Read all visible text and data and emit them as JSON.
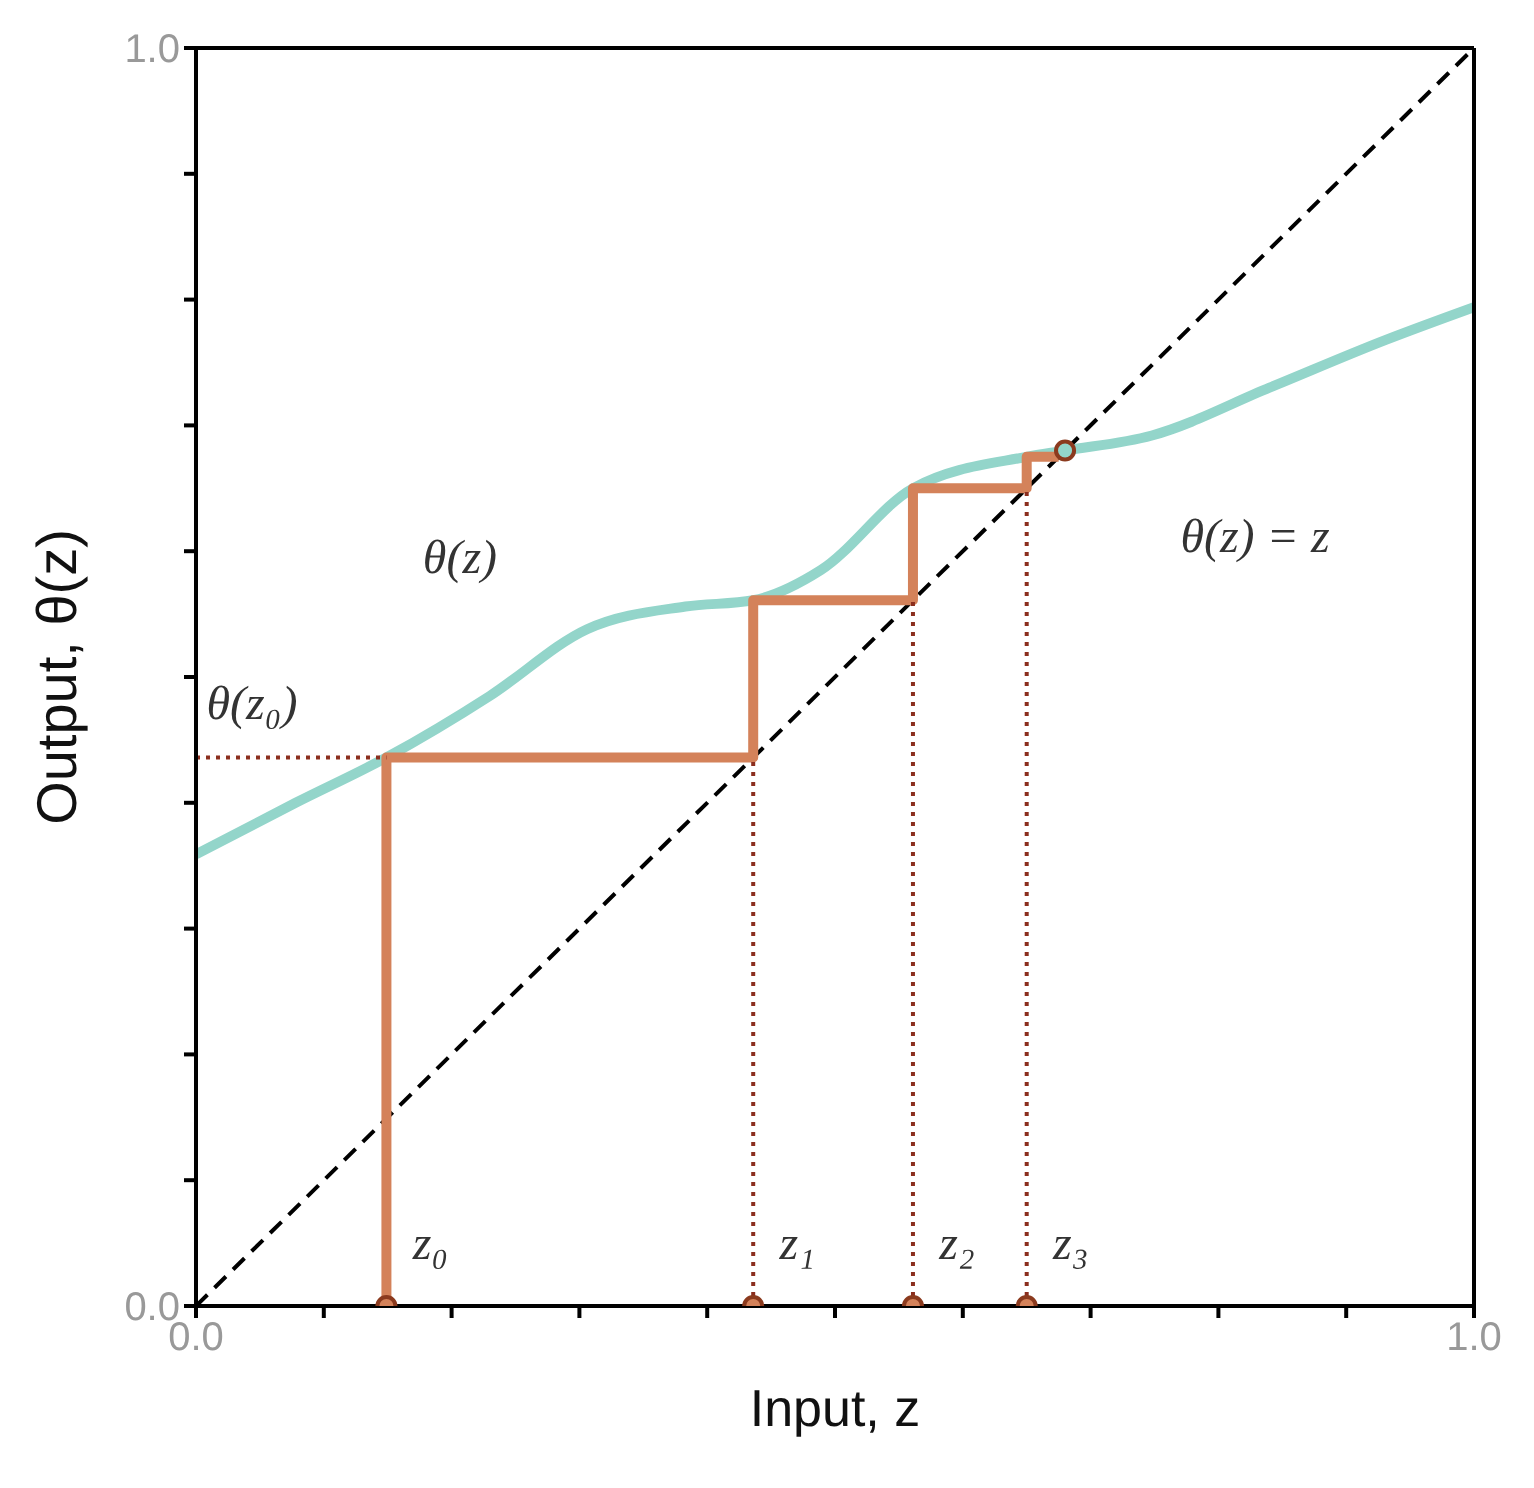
{
  "chart_data": {
    "type": "line",
    "xlabel": "Input, z",
    "ylabel": "Output, θ(z)",
    "xlim": [
      0,
      1
    ],
    "ylim": [
      0,
      1
    ],
    "xticks": [
      {
        "value": 0,
        "label": "0.0"
      },
      {
        "value": 0.1,
        "label": null
      },
      {
        "value": 0.2,
        "label": null
      },
      {
        "value": 0.3,
        "label": null
      },
      {
        "value": 0.4,
        "label": null
      },
      {
        "value": 0.5,
        "label": null
      },
      {
        "value": 0.6,
        "label": null
      },
      {
        "value": 0.7,
        "label": null
      },
      {
        "value": 0.8,
        "label": null
      },
      {
        "value": 0.9,
        "label": null
      },
      {
        "value": 1,
        "label": "1.0"
      }
    ],
    "yticks": [
      {
        "value": 0,
        "label": "0.0"
      },
      {
        "value": 0.1,
        "label": null
      },
      {
        "value": 0.2,
        "label": null
      },
      {
        "value": 0.3,
        "label": null
      },
      {
        "value": 0.4,
        "label": null
      },
      {
        "value": 0.5,
        "label": null
      },
      {
        "value": 0.6,
        "label": null
      },
      {
        "value": 0.7,
        "label": null
      },
      {
        "value": 0.8,
        "label": null
      },
      {
        "value": 0.9,
        "label": null
      },
      {
        "value": 1,
        "label": "1.0"
      }
    ],
    "grid": false,
    "legend": false,
    "series": [
      {
        "type": "line",
        "color": "#93d5ca",
        "x": [
          0,
          0.078,
          0.149,
          0.23,
          0.306,
          0.383,
          0.436,
          0.489,
          0.561,
          0.65,
          0.68,
          0.748,
          0.84,
          0.931,
          1
        ],
        "values": [
          0.359,
          0.4,
          0.436,
          0.485,
          0.538,
          0.556,
          0.561,
          0.585,
          0.65,
          0.675,
          0.68,
          0.692,
          0.73,
          0.768,
          0.794
        ]
      },
      {
        "type": "line",
        "color": "#000000",
        "line_style": "dashed",
        "x": [
          0,
          1
        ],
        "values": [
          0,
          1
        ]
      },
      {
        "type": "line",
        "color": "#d4825a",
        "x": [
          0.149,
          0.149,
          0.436,
          0.436,
          0.561,
          0.561,
          0.65,
          0.65,
          0.675
        ],
        "values": [
          0,
          0.436,
          0.436,
          0.561,
          0.561,
          0.65,
          0.65,
          0.675,
          0.675
        ]
      },
      {
        "type": "line",
        "color": "#8b2e1e",
        "line_style": "dotted",
        "x": [
          0,
          0.149
        ],
        "values": [
          0.436,
          0.436
        ]
      },
      {
        "type": "line",
        "color": "#8b2e1e",
        "line_style": "dotted",
        "x": [
          0.436,
          0.436
        ],
        "values": [
          0,
          0.436
        ]
      },
      {
        "type": "line",
        "color": "#8b2e1e",
        "line_style": "dotted",
        "x": [
          0.561,
          0.561
        ],
        "values": [
          0,
          0.561
        ]
      },
      {
        "type": "line",
        "color": "#8b2e1e",
        "line_style": "dotted",
        "x": [
          0.65,
          0.65
        ],
        "values": [
          0,
          0.65
        ]
      },
      {
        "type": "scatter",
        "color": "#d4825a",
        "marker": "circle",
        "x": [
          0.149,
          0.436,
          0.561,
          0.65
        ],
        "values": [
          0,
          0,
          0,
          0
        ]
      },
      {
        "type": "scatter",
        "color": "#93d5ca",
        "marker": "circle",
        "x": [
          0.68
        ],
        "values": [
          0.68
        ]
      }
    ],
    "annotations": [
      {
        "text": "θ(z)",
        "x": 0.23,
        "y": 0.485
      },
      {
        "text": "θ(z₀)",
        "x": 0,
        "y": 0.436
      },
      {
        "text": "θ(z) = z",
        "x": 0.68,
        "y": 0.68
      },
      {
        "text": "z₀",
        "x": 0.149,
        "y": 0
      },
      {
        "text": "z₁",
        "x": 0.436,
        "y": 0
      },
      {
        "text": "z₂",
        "x": 0.561,
        "y": 0
      },
      {
        "text": "z₃",
        "x": 0.65,
        "y": 0
      }
    ]
  }
}
